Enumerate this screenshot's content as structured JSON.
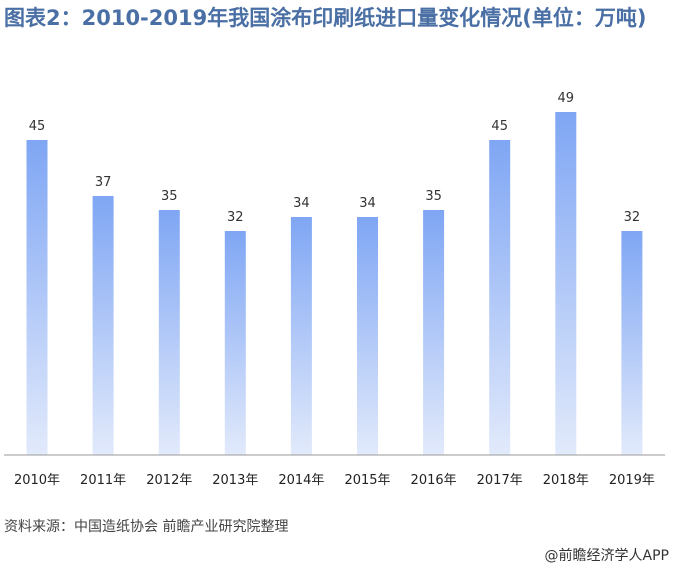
{
  "title": "图表2：2010-2019年我国涂布印刷纸进口量变化情况(单位：万吨)",
  "source": "资料来源：中国造纸协会 前瞻产业研究院整理",
  "brand": "@前瞻经济学人APP",
  "colors": {
    "title": "#4a6fa5",
    "bar_top": "#7fa6f4",
    "bar_bottom": "#dfe8fb"
  },
  "chart_data": {
    "type": "bar",
    "categories": [
      "2010年",
      "2011年",
      "2012年",
      "2013年",
      "2014年",
      "2015年",
      "2016年",
      "2017年",
      "2018年",
      "2019年"
    ],
    "values": [
      45,
      37,
      35,
      32,
      34,
      34,
      35,
      45,
      49,
      32
    ],
    "data_labels": [
      "45",
      "37",
      "35",
      "32",
      "34",
      "34",
      "35",
      "45",
      "49",
      "32"
    ],
    "ylim": [
      0,
      50
    ],
    "grid": false,
    "legend": "none"
  }
}
